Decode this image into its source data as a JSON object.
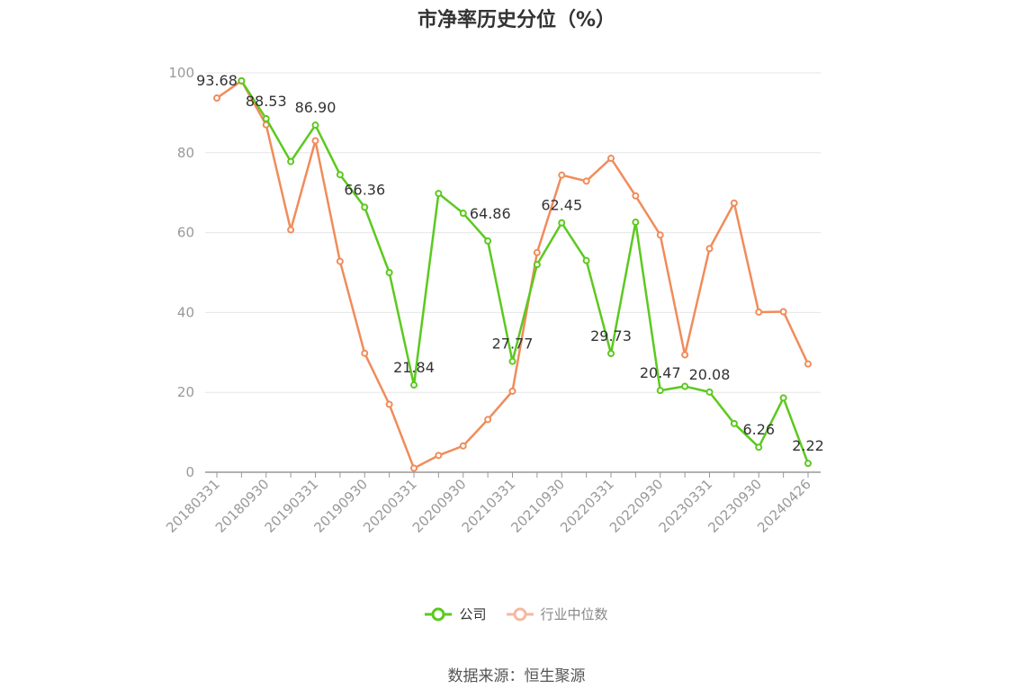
{
  "page": {
    "title": "市净率历史分位（%）",
    "source": "数据来源：恒生聚源"
  },
  "legend": {
    "company": "公司",
    "industry": "行业中位数"
  },
  "colors": {
    "company": "#5cc91f",
    "industry": "#f08c5a",
    "industry_legend": "#f5b9a0",
    "axis": "#999999",
    "grid": "#e6e6e6",
    "label": "#333333"
  },
  "chart_data": {
    "type": "line",
    "title": "市净率历史分位（%）",
    "ylim": [
      0,
      100
    ],
    "y_ticks": [
      0,
      20,
      40,
      60,
      80,
      100
    ],
    "x_tick_labels": [
      "20180331",
      "20180930",
      "20190331",
      "20190930",
      "20200331",
      "20200930",
      "20210331",
      "20210930",
      "20220331",
      "20220930",
      "20230331",
      "20230930",
      "20240426"
    ],
    "x": [
      "20180331",
      "20180630",
      "20180930",
      "20181231",
      "20190331",
      "20190630",
      "20190930",
      "20191231",
      "20200331",
      "20200630",
      "20200930",
      "20201231",
      "20210331",
      "20210630",
      "20210930",
      "20211231",
      "20220331",
      "20220630",
      "20220930",
      "20221231",
      "20230331",
      "20230630",
      "20230930",
      "20231231",
      "20240426"
    ],
    "series": [
      {
        "name": "公司",
        "values": [
          null,
          98.0,
          88.53,
          77.8,
          86.9,
          74.5,
          66.36,
          50.0,
          21.84,
          69.8,
          64.86,
          57.9,
          27.77,
          52.0,
          62.45,
          53.0,
          29.73,
          62.6,
          20.47,
          21.5,
          20.08,
          12.2,
          6.26,
          18.6,
          2.22
        ],
        "labels": [
          {
            "i": 2,
            "text": "88.53"
          },
          {
            "i": 4,
            "text": "86.90"
          },
          {
            "i": 6,
            "text": "66.36"
          },
          {
            "i": 8,
            "text": "21.84"
          },
          {
            "i": 10,
            "text": "64.86"
          },
          {
            "i": 12,
            "text": "27.77"
          },
          {
            "i": 14,
            "text": "62.45"
          },
          {
            "i": 16,
            "text": "29.73"
          },
          {
            "i": 18,
            "text": "20.47"
          },
          {
            "i": 20,
            "text": "20.08"
          },
          {
            "i": 22,
            "text": "6.26"
          },
          {
            "i": 24,
            "text": "2.22"
          }
        ]
      },
      {
        "name": "行业中位数",
        "values": [
          93.68,
          98.0,
          87.0,
          60.7,
          83.0,
          52.8,
          29.8,
          17.0,
          1.0,
          4.2,
          6.6,
          13.2,
          20.3,
          55.0,
          74.4,
          72.9,
          78.6,
          69.2,
          59.4,
          29.4,
          56.0,
          67.4,
          40.1,
          40.2,
          27.1
        ],
        "labels": [
          {
            "i": 0,
            "text": "93.68"
          }
        ]
      }
    ]
  }
}
